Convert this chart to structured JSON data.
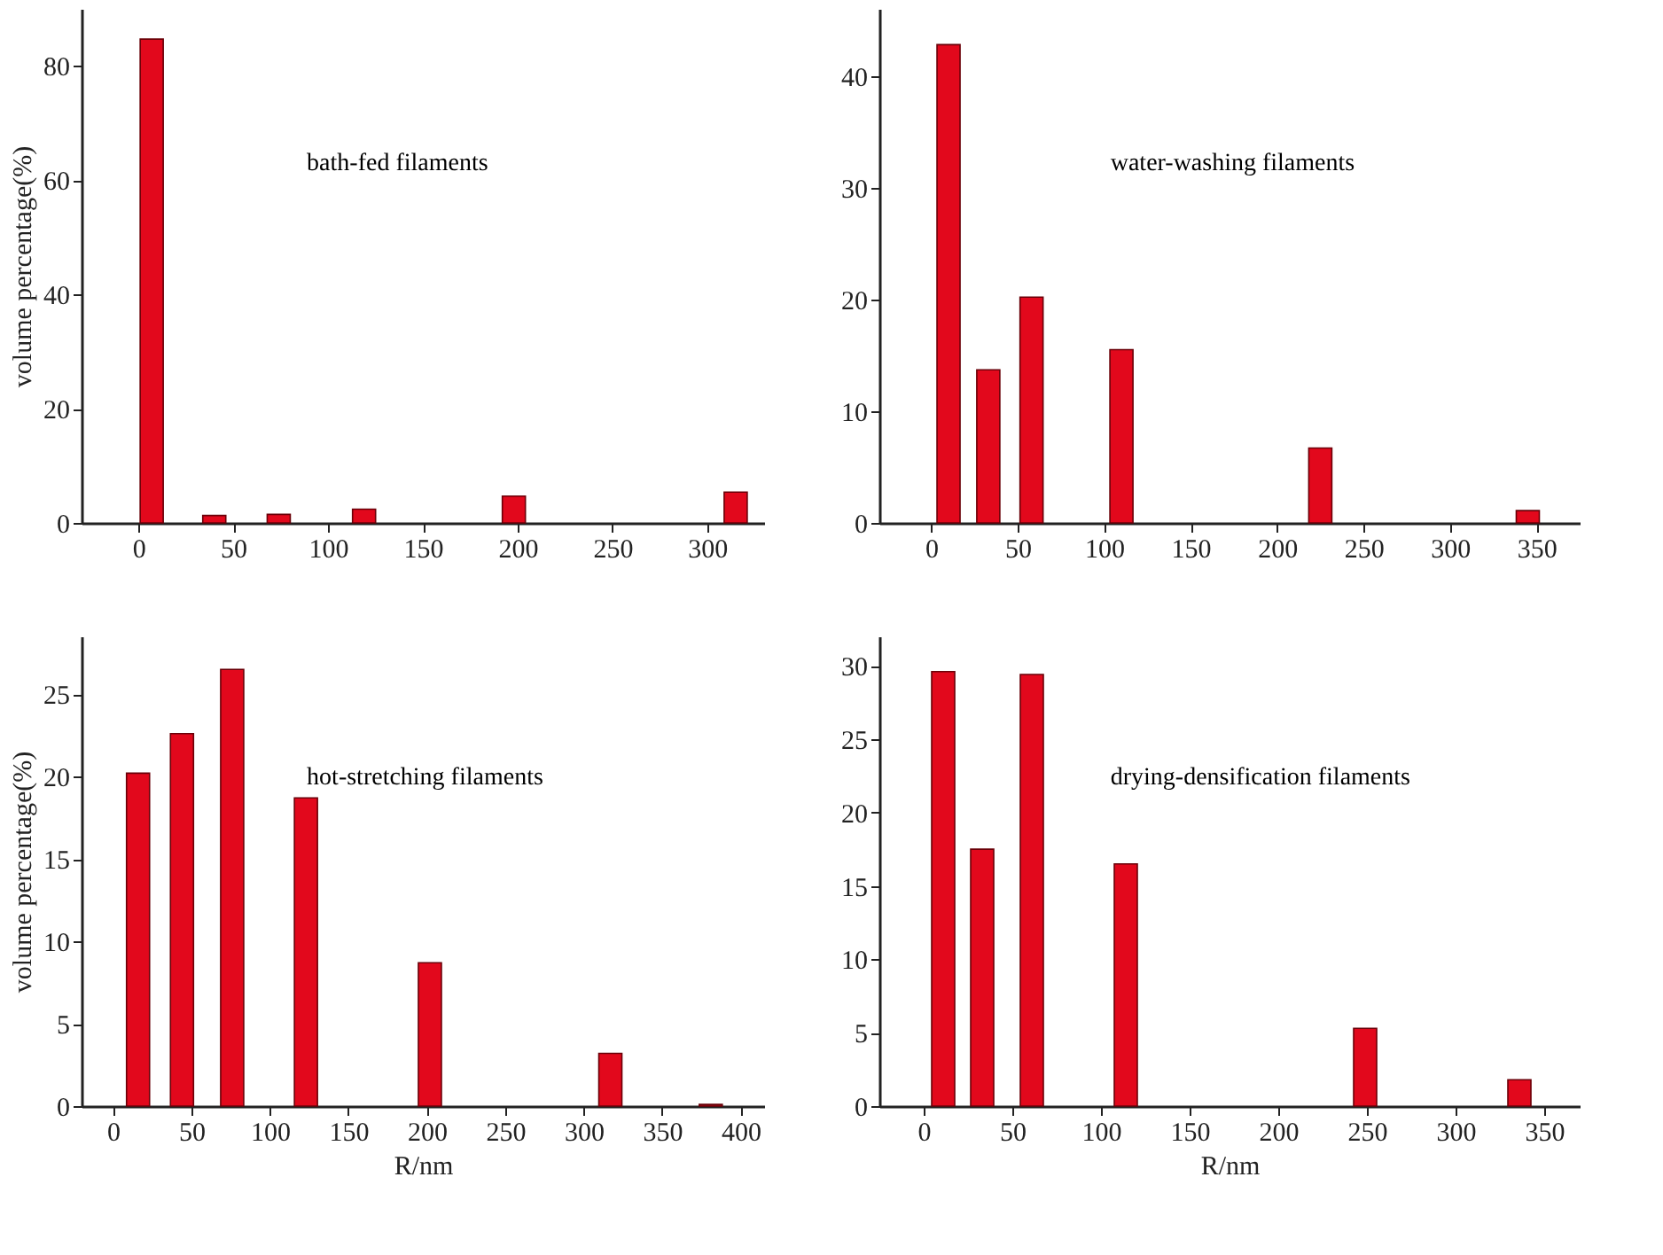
{
  "chart_data": [
    {
      "type": "bar",
      "annotations": [
        "bath-fed filaments"
      ],
      "ylabel": "volume percentage(%)",
      "x": [
        7,
        40,
        74,
        119,
        198,
        315
      ],
      "values": [
        84.7,
        1.3,
        1.5,
        2.4,
        4.7,
        5.4
      ],
      "color": "#e2081c",
      "xlim": [
        -30,
        330
      ],
      "xticks": [
        0,
        50,
        100,
        150,
        200,
        250,
        300
      ],
      "ylim": [
        0,
        90
      ],
      "yticks": [
        0,
        20,
        40,
        60,
        80
      ]
    },
    {
      "type": "bar",
      "annotations": [
        "water-washing filaments"
      ],
      "x": [
        10,
        33,
        58,
        110,
        225,
        345
      ],
      "values": [
        42.8,
        13.7,
        20.2,
        15.5,
        6.7,
        1.1
      ],
      "color": "#e2081c",
      "xlim": [
        -30,
        375
      ],
      "xticks": [
        0,
        50,
        100,
        150,
        200,
        250,
        300,
        350
      ],
      "ylim": [
        0,
        46
      ],
      "yticks": [
        0,
        10,
        20,
        30,
        40
      ]
    },
    {
      "type": "bar",
      "annotations": [
        "hot-stretching filaments"
      ],
      "xlabel": "R/nm",
      "ylabel": "volume percentage(%)",
      "x": [
        16,
        44,
        76,
        123,
        202,
        317,
        381
      ],
      "values": [
        20.2,
        22.6,
        26.5,
        18.7,
        8.7,
        3.2,
        0.1
      ],
      "color": "#e2081c",
      "xlim": [
        -20,
        415
      ],
      "xticks": [
        0,
        50,
        100,
        150,
        200,
        250,
        300,
        350,
        400
      ],
      "ylim": [
        0,
        28.5
      ],
      "yticks": [
        0,
        5,
        10,
        15,
        20,
        25
      ]
    },
    {
      "type": "bar",
      "annotations": [
        "drying-densification filaments"
      ],
      "xlabel": "R/nm",
      "x": [
        11,
        33,
        61,
        114,
        249,
        336
      ],
      "values": [
        29.6,
        17.5,
        29.4,
        16.5,
        5.3,
        1.8
      ],
      "color": "#e2081c",
      "xlim": [
        -25,
        370
      ],
      "xticks": [
        0,
        50,
        100,
        150,
        200,
        250,
        300,
        350
      ],
      "ylim": [
        0,
        32
      ],
      "yticks": [
        0,
        5,
        10,
        15,
        20,
        25,
        30
      ]
    }
  ]
}
